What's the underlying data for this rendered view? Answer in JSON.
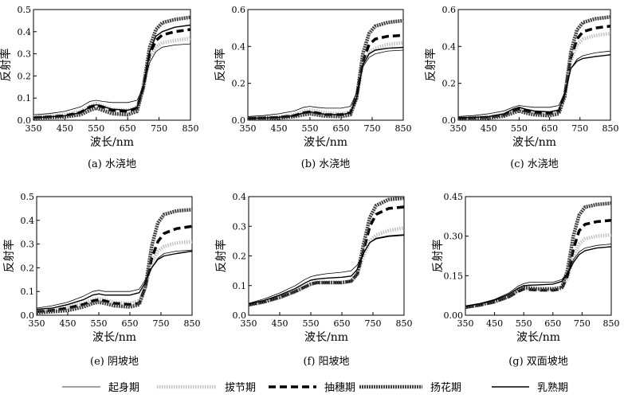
{
  "chart_data": [
    {
      "type": "line",
      "title": "(a) 水浇地",
      "xlabel": "波长/nm",
      "ylabel": "反射率",
      "xlim": [
        350,
        850
      ],
      "ylim": [
        0,
        0.5
      ],
      "xticks": [
        350,
        450,
        550,
        650,
        750,
        850
      ],
      "yticks": [
        0.0,
        0.1,
        0.2,
        0.3,
        0.4,
        0.5
      ],
      "ytick_labels": [
        "0.0",
        "0.1",
        "0.2",
        "0.3",
        "0.4",
        "0.5"
      ],
      "x": [
        350,
        400,
        450,
        500,
        530,
        550,
        570,
        600,
        650,
        680,
        700,
        720,
        740,
        760,
        800,
        850
      ],
      "series": [
        {
          "values": [
            0.025,
            0.03,
            0.04,
            0.06,
            0.085,
            0.09,
            0.085,
            0.08,
            0.08,
            0.09,
            0.15,
            0.26,
            0.31,
            0.33,
            0.34,
            0.345
          ]
        },
        {
          "values": [
            0.015,
            0.02,
            0.025,
            0.04,
            0.065,
            0.075,
            0.065,
            0.05,
            0.045,
            0.06,
            0.14,
            0.28,
            0.33,
            0.35,
            0.36,
            0.37
          ]
        },
        {
          "values": [
            0.012,
            0.015,
            0.02,
            0.035,
            0.06,
            0.068,
            0.06,
            0.045,
            0.04,
            0.055,
            0.15,
            0.3,
            0.36,
            0.385,
            0.4,
            0.41
          ]
        },
        {
          "values": [
            0.01,
            0.012,
            0.015,
            0.025,
            0.045,
            0.055,
            0.045,
            0.03,
            0.025,
            0.04,
            0.15,
            0.33,
            0.41,
            0.44,
            0.455,
            0.465
          ]
        },
        {
          "values": [
            0.012,
            0.015,
            0.02,
            0.035,
            0.06,
            0.07,
            0.062,
            0.05,
            0.045,
            0.058,
            0.15,
            0.31,
            0.38,
            0.4,
            0.42,
            0.43
          ]
        }
      ]
    },
    {
      "type": "line",
      "title": "(b) 水浇地",
      "xlabel": "波长/nm",
      "ylabel": "反射率",
      "xlim": [
        350,
        850
      ],
      "ylim": [
        0,
        0.6
      ],
      "xticks": [
        350,
        450,
        550,
        650,
        750,
        850
      ],
      "yticks": [
        0.0,
        0.2,
        0.4,
        0.6
      ],
      "ytick_labels": [
        "0.0",
        "0.2",
        "0.4",
        "0.6"
      ],
      "x": [
        350,
        400,
        450,
        500,
        530,
        550,
        570,
        600,
        650,
        680,
        700,
        720,
        740,
        760,
        800,
        850
      ],
      "series": [
        {
          "values": [
            0.02,
            0.025,
            0.035,
            0.05,
            0.07,
            0.075,
            0.07,
            0.065,
            0.065,
            0.075,
            0.15,
            0.29,
            0.34,
            0.36,
            0.375,
            0.38
          ]
        },
        {
          "values": [
            0.012,
            0.015,
            0.02,
            0.03,
            0.05,
            0.055,
            0.05,
            0.04,
            0.035,
            0.045,
            0.13,
            0.3,
            0.37,
            0.39,
            0.41,
            0.42
          ]
        },
        {
          "values": [
            0.01,
            0.012,
            0.015,
            0.025,
            0.04,
            0.045,
            0.04,
            0.03,
            0.03,
            0.04,
            0.13,
            0.32,
            0.41,
            0.44,
            0.455,
            0.46
          ]
        },
        {
          "values": [
            0.008,
            0.01,
            0.012,
            0.02,
            0.03,
            0.035,
            0.03,
            0.022,
            0.02,
            0.03,
            0.12,
            0.36,
            0.47,
            0.51,
            0.53,
            0.54
          ]
        },
        {
          "values": [
            0.01,
            0.012,
            0.016,
            0.025,
            0.04,
            0.045,
            0.04,
            0.032,
            0.03,
            0.04,
            0.12,
            0.3,
            0.36,
            0.38,
            0.39,
            0.395
          ]
        }
      ]
    },
    {
      "type": "line",
      "title": "(c) 水浇地",
      "xlabel": "波长/nm",
      "ylabel": "反射率",
      "xlim": [
        350,
        850
      ],
      "ylim": [
        0,
        0.6
      ],
      "xticks": [
        350,
        450,
        550,
        650,
        750,
        850
      ],
      "yticks": [
        0.0,
        0.2,
        0.4,
        0.6
      ],
      "ytick_labels": [
        "0.0",
        "0.2",
        "0.4",
        "0.6"
      ],
      "x": [
        350,
        400,
        450,
        500,
        530,
        550,
        570,
        600,
        650,
        680,
        700,
        720,
        740,
        760,
        800,
        850
      ],
      "series": [
        {
          "values": [
            0.02,
            0.025,
            0.035,
            0.05,
            0.07,
            0.08,
            0.075,
            0.07,
            0.07,
            0.08,
            0.15,
            0.28,
            0.33,
            0.35,
            0.365,
            0.375
          ]
        },
        {
          "values": [
            0.012,
            0.015,
            0.02,
            0.032,
            0.055,
            0.065,
            0.055,
            0.045,
            0.04,
            0.05,
            0.14,
            0.32,
            0.41,
            0.44,
            0.46,
            0.47
          ]
        },
        {
          "values": [
            0.01,
            0.012,
            0.016,
            0.028,
            0.05,
            0.06,
            0.05,
            0.04,
            0.035,
            0.045,
            0.14,
            0.34,
            0.44,
            0.48,
            0.5,
            0.51
          ]
        },
        {
          "values": [
            0.008,
            0.01,
            0.012,
            0.022,
            0.04,
            0.05,
            0.04,
            0.03,
            0.025,
            0.035,
            0.13,
            0.37,
            0.49,
            0.53,
            0.55,
            0.56
          ]
        },
        {
          "values": [
            0.012,
            0.015,
            0.02,
            0.035,
            0.06,
            0.07,
            0.06,
            0.05,
            0.045,
            0.055,
            0.14,
            0.28,
            0.32,
            0.335,
            0.345,
            0.355
          ]
        }
      ]
    },
    {
      "type": "line",
      "title": "(e) 阴坡地",
      "xlabel": "波长/nm",
      "ylabel": "反射率",
      "xlim": [
        350,
        850
      ],
      "ylim": [
        0,
        0.5
      ],
      "xticks": [
        350,
        450,
        550,
        650,
        750,
        850
      ],
      "yticks": [
        0.0,
        0.1,
        0.2,
        0.3,
        0.4,
        0.5
      ],
      "ytick_labels": [
        "0.0",
        "0.1",
        "0.2",
        "0.3",
        "0.4",
        "0.5"
      ],
      "x": [
        350,
        400,
        450,
        500,
        530,
        550,
        570,
        600,
        650,
        680,
        700,
        720,
        740,
        760,
        800,
        850
      ],
      "series": [
        {
          "values": [
            0.03,
            0.04,
            0.055,
            0.08,
            0.1,
            0.105,
            0.1,
            0.1,
            0.1,
            0.11,
            0.15,
            0.2,
            0.24,
            0.26,
            0.27,
            0.275
          ]
        },
        {
          "values": [
            0.02,
            0.025,
            0.035,
            0.05,
            0.065,
            0.07,
            0.065,
            0.055,
            0.05,
            0.06,
            0.12,
            0.22,
            0.27,
            0.29,
            0.305,
            0.31
          ]
        },
        {
          "values": [
            0.015,
            0.02,
            0.03,
            0.045,
            0.06,
            0.065,
            0.06,
            0.05,
            0.045,
            0.05,
            0.12,
            0.24,
            0.31,
            0.345,
            0.365,
            0.375
          ]
        },
        {
          "values": [
            0.01,
            0.015,
            0.02,
            0.035,
            0.05,
            0.055,
            0.05,
            0.04,
            0.035,
            0.045,
            0.12,
            0.29,
            0.39,
            0.425,
            0.44,
            0.445
          ]
        },
        {
          "values": [
            0.025,
            0.03,
            0.045,
            0.065,
            0.085,
            0.09,
            0.085,
            0.085,
            0.085,
            0.095,
            0.14,
            0.2,
            0.235,
            0.25,
            0.26,
            0.27
          ]
        }
      ]
    },
    {
      "type": "line",
      "title": "(f) 阳坡地",
      "xlabel": "波长/nm",
      "ylabel": "反射率",
      "xlim": [
        350,
        850
      ],
      "ylim": [
        0,
        0.4
      ],
      "xticks": [
        350,
        450,
        550,
        650,
        750,
        850
      ],
      "yticks": [
        0.0,
        0.1,
        0.2,
        0.3,
        0.4
      ],
      "ytick_labels": [
        "0.0",
        "0.1",
        "0.2",
        "0.3",
        "0.4"
      ],
      "x": [
        350,
        400,
        450,
        500,
        530,
        550,
        570,
        600,
        650,
        680,
        700,
        720,
        740,
        760,
        800,
        850
      ],
      "series": [
        {
          "values": [
            0.04,
            0.055,
            0.075,
            0.1,
            0.12,
            0.13,
            0.135,
            0.14,
            0.145,
            0.15,
            0.17,
            0.21,
            0.245,
            0.26,
            0.268,
            0.272
          ]
        },
        {
          "values": [
            0.035,
            0.045,
            0.06,
            0.08,
            0.095,
            0.105,
            0.11,
            0.11,
            0.11,
            0.115,
            0.14,
            0.2,
            0.25,
            0.27,
            0.285,
            0.295
          ]
        },
        {
          "values": [
            0.035,
            0.045,
            0.06,
            0.08,
            0.095,
            0.105,
            0.11,
            0.11,
            0.11,
            0.115,
            0.14,
            0.22,
            0.3,
            0.34,
            0.36,
            0.365
          ]
        },
        {
          "values": [
            0.035,
            0.045,
            0.06,
            0.08,
            0.095,
            0.105,
            0.11,
            0.11,
            0.11,
            0.115,
            0.14,
            0.24,
            0.33,
            0.37,
            0.39,
            0.395
          ]
        },
        {
          "values": [
            0.038,
            0.05,
            0.068,
            0.09,
            0.108,
            0.118,
            0.122,
            0.125,
            0.128,
            0.132,
            0.155,
            0.21,
            0.245,
            0.258,
            0.266,
            0.27
          ]
        }
      ]
    },
    {
      "type": "line",
      "title": "(g) 双面坡地",
      "xlabel": "波长/nm",
      "ylabel": "反射率",
      "xlim": [
        350,
        850
      ],
      "ylim": [
        0,
        0.45
      ],
      "xticks": [
        350,
        450,
        550,
        650,
        750,
        850
      ],
      "yticks": [
        0.0,
        0.15,
        0.3,
        0.45
      ],
      "ytick_labels": [
        "0.00",
        "0.15",
        "0.30",
        "0.45"
      ],
      "x": [
        350,
        400,
        450,
        500,
        530,
        550,
        570,
        600,
        650,
        680,
        700,
        720,
        740,
        760,
        800,
        850
      ],
      "series": [
        {
          "values": [
            0.035,
            0.045,
            0.06,
            0.085,
            0.11,
            0.12,
            0.125,
            0.125,
            0.125,
            0.135,
            0.16,
            0.21,
            0.24,
            0.255,
            0.265,
            0.27
          ]
        },
        {
          "values": [
            0.03,
            0.038,
            0.05,
            0.07,
            0.09,
            0.1,
            0.098,
            0.095,
            0.095,
            0.1,
            0.14,
            0.22,
            0.27,
            0.29,
            0.3,
            0.305
          ]
        },
        {
          "values": [
            0.03,
            0.038,
            0.05,
            0.07,
            0.09,
            0.1,
            0.098,
            0.095,
            0.095,
            0.1,
            0.15,
            0.25,
            0.32,
            0.345,
            0.355,
            0.36
          ]
        },
        {
          "values": [
            0.03,
            0.04,
            0.052,
            0.072,
            0.095,
            0.105,
            0.103,
            0.1,
            0.1,
            0.105,
            0.17,
            0.3,
            0.38,
            0.41,
            0.42,
            0.425
          ]
        },
        {
          "values": [
            0.035,
            0.043,
            0.057,
            0.08,
            0.102,
            0.112,
            0.114,
            0.115,
            0.118,
            0.128,
            0.155,
            0.2,
            0.23,
            0.245,
            0.255,
            0.26
          ]
        }
      ]
    }
  ],
  "legend": [
    {
      "label": "起身期",
      "style": "thin",
      "color": "#000000"
    },
    {
      "label": "拔节期",
      "style": "dotted-thick",
      "color": "#bdbdbd"
    },
    {
      "label": "抽穗期",
      "style": "dashed-thick",
      "color": "#000000"
    },
    {
      "label": "扬花期",
      "style": "textured-thick",
      "color": "#3a3a3a"
    },
    {
      "label": "乳熟期",
      "style": "medium",
      "color": "#000000"
    }
  ]
}
